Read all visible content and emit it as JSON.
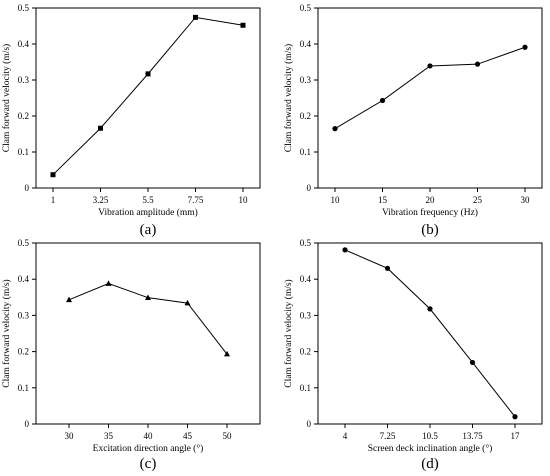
{
  "chart_data": [
    {
      "type": "line",
      "caption": "(a)",
      "x": [
        1,
        3.25,
        5.5,
        7.75,
        10
      ],
      "x_ticks": [
        "1",
        "3.25",
        "5.5",
        "7.75",
        "10"
      ],
      "values": [
        0.037,
        0.166,
        0.317,
        0.474,
        0.452
      ],
      "marker": "square",
      "xlabel": "Vibration amplitude (mm)",
      "ylabel": "Clam forward velocity (m/s)",
      "ylim": [
        0,
        0.5
      ],
      "y_ticks": [
        "0",
        "0.1",
        "0.2",
        "0.3",
        "0.4",
        "0.5"
      ]
    },
    {
      "type": "line",
      "caption": "(b)",
      "x": [
        10,
        15,
        20,
        25,
        30
      ],
      "x_ticks": [
        "10",
        "15",
        "20",
        "25",
        "30"
      ],
      "values": [
        0.165,
        0.243,
        0.339,
        0.344,
        0.391
      ],
      "marker": "circle",
      "xlabel": "Vibration frequency (Hz)",
      "ylabel": "Clam forward velocity (m/s)",
      "ylim": [
        0,
        0.5
      ],
      "y_ticks": [
        "0",
        "0.1",
        "0.2",
        "0.3",
        "0.4",
        "0.5"
      ]
    },
    {
      "type": "line",
      "caption": "(c)",
      "x": [
        30,
        35,
        40,
        45,
        50
      ],
      "x_ticks": [
        "30",
        "35",
        "40",
        "45",
        "50"
      ],
      "values": [
        0.343,
        0.388,
        0.349,
        0.334,
        0.193
      ],
      "marker": "triangle",
      "xlabel": "Excitation direction angle (°)",
      "ylabel": "Clam forward velocity (m/s)",
      "ylim": [
        0,
        0.5
      ],
      "y_ticks": [
        "0",
        "0.1",
        "0.2",
        "0.3",
        "0.4",
        "0.5"
      ]
    },
    {
      "type": "line",
      "caption": "(d)",
      "x": [
        4,
        7.25,
        10.5,
        13.75,
        17
      ],
      "x_ticks": [
        "4",
        "7.25",
        "10.5",
        "13.75",
        "17"
      ],
      "values": [
        0.481,
        0.43,
        0.318,
        0.17,
        0.02
      ],
      "marker": "circle",
      "xlabel": "Screen deck inclination angle (°)",
      "ylabel": "Clam forward velocity (m/s)",
      "ylim": [
        0,
        0.5
      ],
      "y_ticks": [
        "0",
        "0.1",
        "0.2",
        "0.3",
        "0.4",
        "0.5"
      ]
    }
  ]
}
